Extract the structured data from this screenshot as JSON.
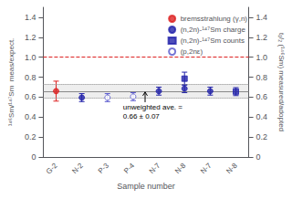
{
  "chart_data": {
    "type": "scatter",
    "xlabel": "Sample number",
    "ylabel": "¹⁴⁶Sm/¹⁴⁷Sm  meas/expect.",
    "y2label": "t₁/₂ (¹⁴⁶Sm) measured/adopted",
    "categories": [
      "G-2",
      "N-2",
      "P-3",
      "P-4",
      "N-7",
      "N-8",
      "N-7",
      "N-8"
    ],
    "series": [
      {
        "name": "bremsstrahlung (γ,n)",
        "marker": "circle",
        "color": "#dd2222",
        "values": [
          0.66,
          null,
          null,
          null,
          null,
          null,
          null,
          null
        ],
        "yerr": [
          0.1,
          null,
          null,
          null,
          null,
          null,
          null,
          null
        ]
      },
      {
        "name": "(n,2n)-¹⁴⁷Sm charge",
        "marker": "circle",
        "color": "#2222aa",
        "values": [
          null,
          0.595,
          null,
          null,
          0.66,
          0.685,
          0.66,
          null
        ],
        "yerr": [
          null,
          0.04,
          null,
          null,
          0.04,
          0.04,
          0.04,
          null
        ]
      },
      {
        "name": "(n,2n)-¹⁴⁷Sm counts",
        "marker": "square",
        "color": "#2222aa",
        "values": [
          null,
          null,
          null,
          null,
          null,
          0.785,
          null,
          0.655
        ],
        "yerr": [
          null,
          null,
          null,
          null,
          null,
          0.065,
          null,
          0.04
        ]
      },
      {
        "name": "(p,2nε)",
        "marker": "open_circle",
        "color": "#5555cc",
        "values": [
          null,
          null,
          0.595,
          0.605,
          null,
          null,
          null,
          null
        ],
        "yerr": [
          null,
          null,
          0.04,
          0.04,
          null,
          null,
          null,
          null
        ]
      }
    ],
    "reference_line": {
      "value": 1.0,
      "color": "#dd2222"
    },
    "average_line": {
      "value": 0.66,
      "color": "#888888"
    },
    "average_band": {
      "range": [
        0.59,
        0.73
      ],
      "color": "#aaaaaa"
    },
    "annotation": "unweighted ave. =\n0.66 ± 0.07",
    "ylim": [
      0,
      1.5
    ],
    "yticks": [
      0,
      0.2,
      0.4,
      0.6,
      0.8,
      {
        "value": 1.0,
        "label": "1.0"
      },
      1.2,
      1.4
    ],
    "y2lim": [
      0,
      1.5
    ],
    "y2ticks": [
      0,
      0.2,
      0.4,
      0.6,
      0.8,
      {
        "value": 1.0,
        "label": "1.0"
      },
      1.2,
      1.4
    ],
    "grid": false,
    "legend": "upper right"
  }
}
